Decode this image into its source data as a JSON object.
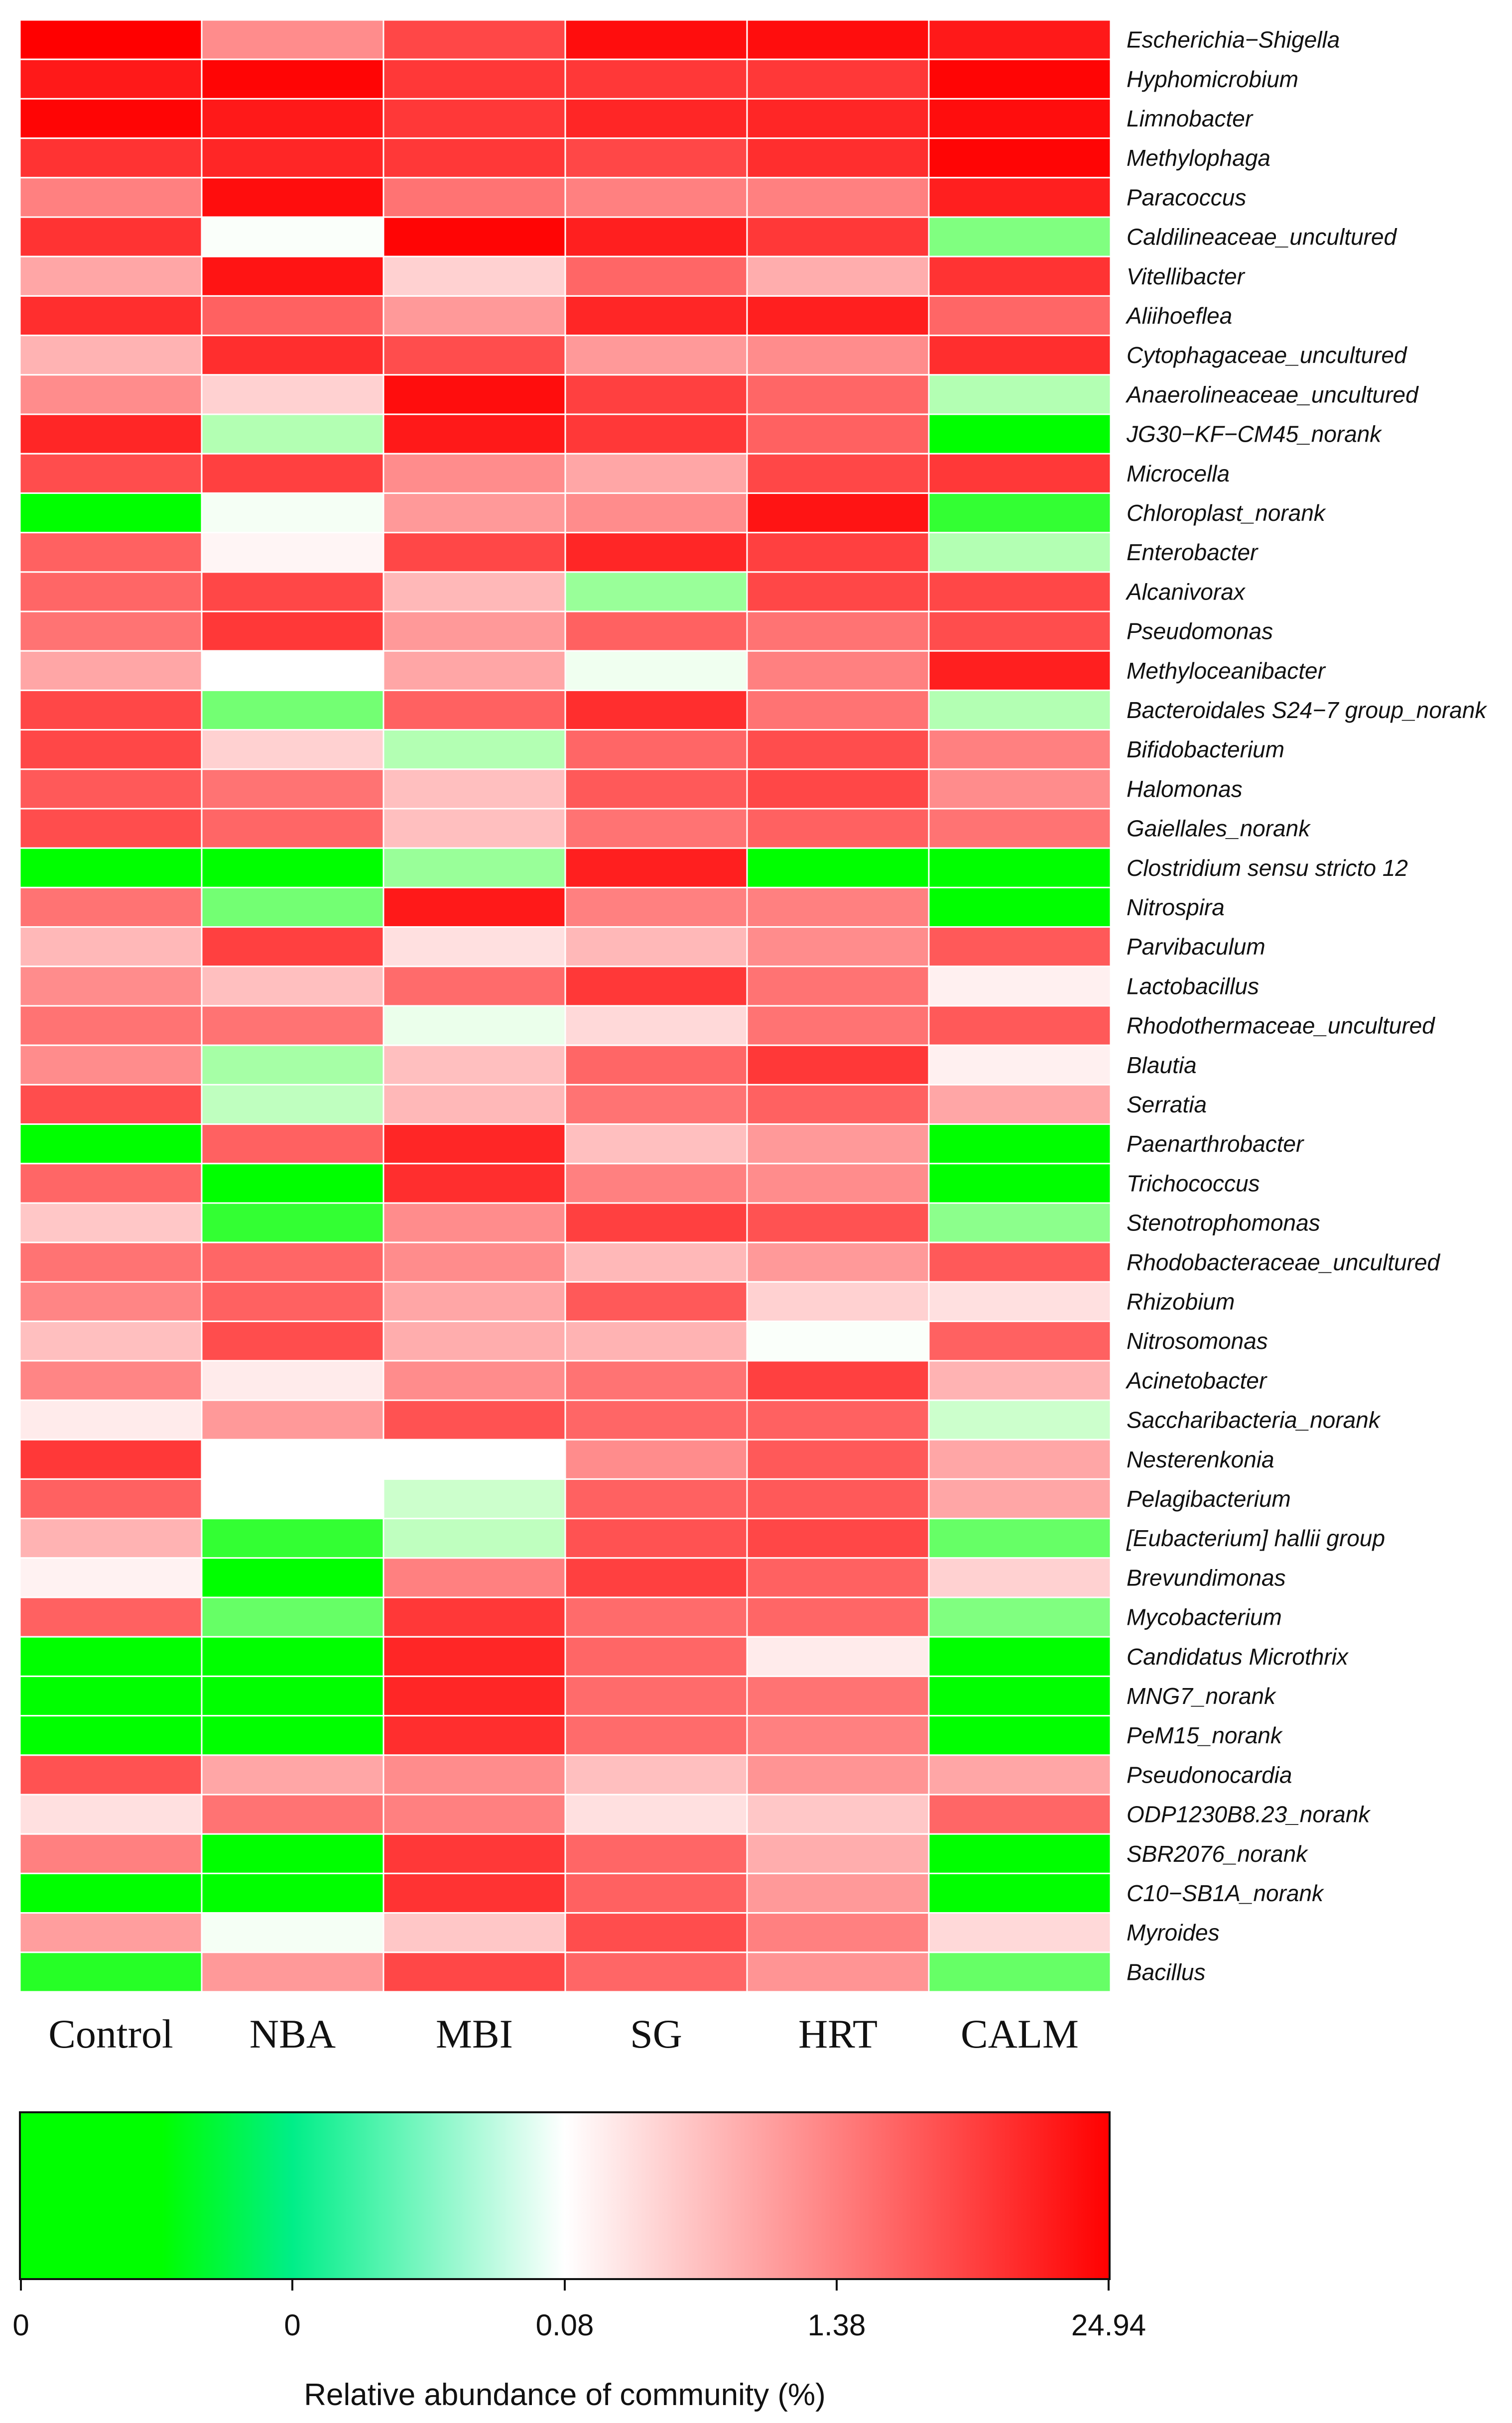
{
  "chart_data": {
    "type": "heatmap",
    "columns": [
      "Control",
      "NBA",
      "MBI",
      "SG",
      "HRT",
      "CALM"
    ],
    "rows": [
      "Escherichia−Shigella",
      "Hyphomicrobium",
      "Limnobacter",
      "Methylophaga",
      "Paracoccus",
      "Caldilineaceae_uncultured",
      "Vitellibacter",
      "Aliihoeflea",
      "Cytophagaceae_uncultured",
      "Anaerolineaceae_uncultured",
      "JG30−KF−CM45_norank",
      "Microcella",
      "Chloroplast_norank",
      "Enterobacter",
      "Alcanivorax",
      "Pseudomonas",
      "Methyloceanibacter",
      "Bacteroidales S24−7 group_norank",
      "Bifidobacterium",
      "Halomonas",
      "Gaiellales_norank",
      "Clostridium sensu stricto 12",
      "Nitrospira",
      "Parvibaculum",
      "Lactobacillus",
      "Rhodothermaceae_uncultured",
      "Blautia",
      "Serratia",
      "Paenarthrobacter",
      "Trichococcus",
      "Stenotrophomonas",
      "Rhodobacteraceae_uncultured",
      "Rhizobium",
      "Nitrosomonas",
      "Acinetobacter",
      "Saccharibacteria_norank",
      "Nesterenkonia",
      "Pelagibacterium",
      "[Eubacterium] hallii group",
      "Brevundimonas",
      "Mycobacterium",
      "Candidatus Microthrix",
      "MNG7_norank",
      "PeM15_norank",
      "Pseudonocardia",
      "ODP1230B8.23_norank",
      "SBR2076_norank",
      "C10−SB1A_norank",
      "Myroides",
      "Bacillus"
    ],
    "color_levels": [
      [
        1.0,
        0.45,
        0.72,
        0.95,
        0.95,
        0.9
      ],
      [
        0.9,
        0.98,
        0.78,
        0.78,
        0.78,
        0.98
      ],
      [
        0.98,
        0.9,
        0.78,
        0.85,
        0.85,
        0.95
      ],
      [
        0.8,
        0.85,
        0.78,
        0.72,
        0.82,
        0.98
      ],
      [
        0.5,
        0.95,
        0.55,
        0.5,
        0.5,
        0.88
      ],
      [
        0.8,
        -0.02,
        0.98,
        0.88,
        0.78,
        -0.5
      ],
      [
        0.35,
        0.92,
        0.18,
        0.6,
        0.32,
        0.8
      ],
      [
        0.82,
        0.62,
        0.4,
        0.85,
        0.88,
        0.6
      ],
      [
        0.3,
        0.82,
        0.7,
        0.4,
        0.45,
        0.82
      ],
      [
        0.45,
        0.18,
        0.95,
        0.75,
        0.6,
        -0.3
      ],
      [
        0.85,
        -0.3,
        0.9,
        0.78,
        0.62,
        -1.0
      ],
      [
        0.7,
        0.75,
        0.45,
        0.35,
        0.72,
        0.78
      ],
      [
        -1.0,
        -0.04,
        0.4,
        0.45,
        0.92,
        -0.8
      ],
      [
        0.62,
        0.04,
        0.72,
        0.85,
        0.75,
        -0.3
      ],
      [
        0.6,
        0.72,
        0.28,
        -0.4,
        0.72,
        0.72
      ],
      [
        0.55,
        0.78,
        0.4,
        0.62,
        0.55,
        0.7
      ],
      [
        0.35,
        0.0,
        0.35,
        -0.06,
        0.5,
        0.88
      ],
      [
        0.72,
        -0.55,
        0.62,
        0.82,
        0.55,
        -0.3
      ],
      [
        0.72,
        0.18,
        -0.3,
        0.6,
        0.7,
        0.5
      ],
      [
        0.65,
        0.55,
        0.25,
        0.65,
        0.72,
        0.45
      ],
      [
        0.7,
        0.6,
        0.25,
        0.55,
        0.62,
        0.55
      ],
      [
        -1.0,
        -1.0,
        -0.4,
        0.88,
        -1.0,
        -1.0
      ],
      [
        0.55,
        -0.55,
        0.9,
        0.5,
        0.5,
        -1.0
      ],
      [
        0.28,
        0.75,
        0.12,
        0.28,
        0.45,
        0.65
      ],
      [
        0.45,
        0.25,
        0.58,
        0.78,
        0.55,
        0.06
      ],
      [
        0.55,
        0.55,
        -0.08,
        0.15,
        0.55,
        0.65
      ],
      [
        0.45,
        -0.35,
        0.25,
        0.6,
        0.78,
        0.06
      ],
      [
        0.7,
        -0.25,
        0.28,
        0.55,
        0.62,
        0.35
      ],
      [
        -1.0,
        0.62,
        0.85,
        0.25,
        0.4,
        -1.0
      ],
      [
        0.6,
        -1.0,
        0.82,
        0.5,
        0.45,
        -1.0
      ],
      [
        0.22,
        -0.8,
        0.45,
        0.75,
        0.68,
        -0.45
      ],
      [
        0.55,
        0.6,
        0.45,
        0.28,
        0.4,
        0.65
      ],
      [
        0.48,
        0.62,
        0.35,
        0.65,
        0.18,
        0.12
      ],
      [
        0.25,
        0.7,
        0.32,
        0.3,
        -0.02,
        0.62
      ],
      [
        0.48,
        0.08,
        0.45,
        0.55,
        0.75,
        0.3
      ],
      [
        0.08,
        0.4,
        0.68,
        0.6,
        0.62,
        -0.2
      ],
      [
        0.78,
        0.0,
        0.0,
        0.45,
        0.65,
        0.35
      ],
      [
        0.62,
        0.0,
        -0.2,
        0.62,
        0.65,
        0.35
      ],
      [
        0.3,
        -0.8,
        -0.25,
        0.68,
        0.72,
        -0.6
      ],
      [
        0.05,
        -1.0,
        0.5,
        0.75,
        0.62,
        0.18
      ],
      [
        0.62,
        -0.6,
        0.78,
        0.58,
        0.6,
        -0.5
      ],
      [
        -1.0,
        -1.0,
        0.85,
        0.6,
        0.08,
        -1.0
      ],
      [
        -1.0,
        -1.0,
        0.85,
        0.58,
        0.55,
        -1.0
      ],
      [
        -1.0,
        -1.0,
        0.82,
        0.58,
        0.5,
        -1.0
      ],
      [
        0.68,
        0.35,
        0.45,
        0.25,
        0.42,
        0.35
      ],
      [
        0.12,
        0.55,
        0.5,
        0.12,
        0.22,
        0.6
      ],
      [
        0.5,
        -1.0,
        0.78,
        0.6,
        0.32,
        -1.0
      ],
      [
        -1.0,
        -1.0,
        0.8,
        0.62,
        0.4,
        -1.0
      ],
      [
        0.38,
        -0.04,
        0.22,
        0.7,
        0.5,
        0.15
      ],
      [
        -0.85,
        0.4,
        0.72,
        0.6,
        0.42,
        -0.6
      ]
    ],
    "colorbar": {
      "title": "Relative abundance of community (%)",
      "tick_labels": [
        "0",
        "0",
        "0.08",
        "1.38",
        "24.94"
      ],
      "colors": [
        "#00ff00",
        "#00ff00",
        "#00ee88",
        "#ffffff",
        "#ff0000"
      ]
    }
  }
}
